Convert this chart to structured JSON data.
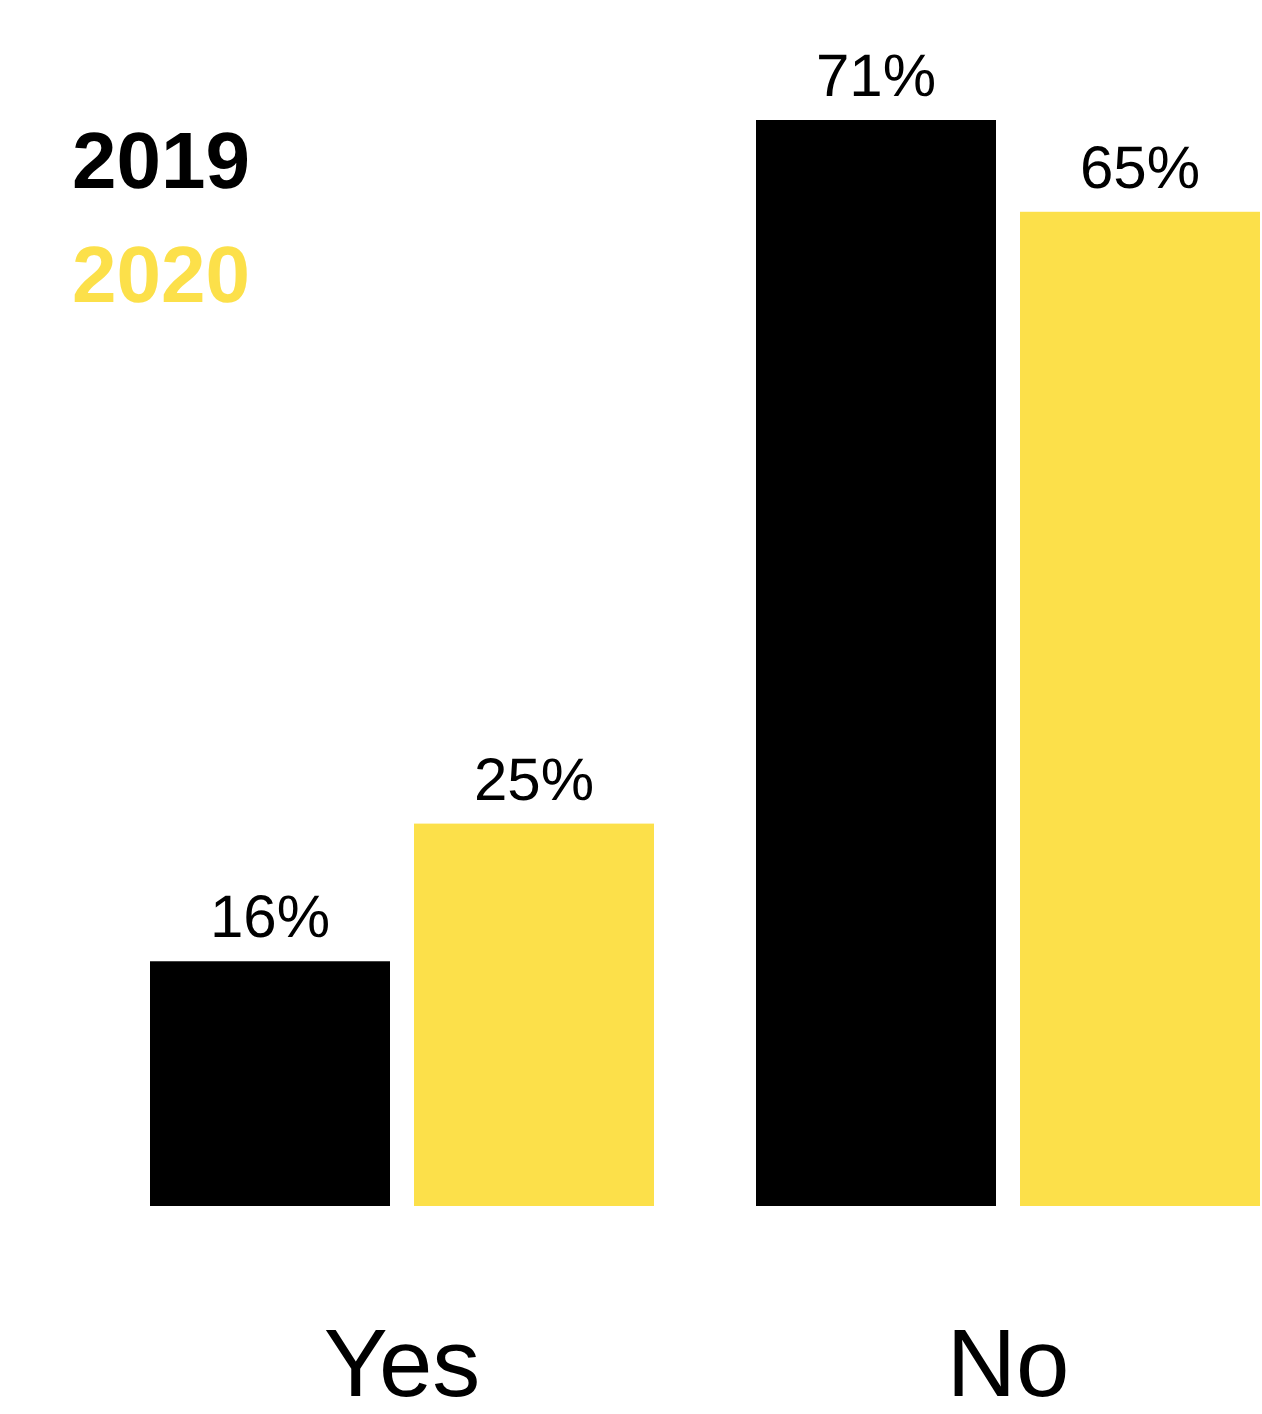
{
  "chart_data": {
    "type": "bar",
    "categories": [
      "Yes",
      "No"
    ],
    "series": [
      {
        "name": "2019",
        "color": "#000000",
        "values": [
          16,
          71
        ],
        "value_labels": [
          "16%",
          "71%"
        ]
      },
      {
        "name": "2020",
        "color": "#fce04a",
        "values": [
          25,
          65
        ],
        "value_labels": [
          "25%",
          "65%"
        ]
      }
    ],
    "legend": "top left"
  }
}
